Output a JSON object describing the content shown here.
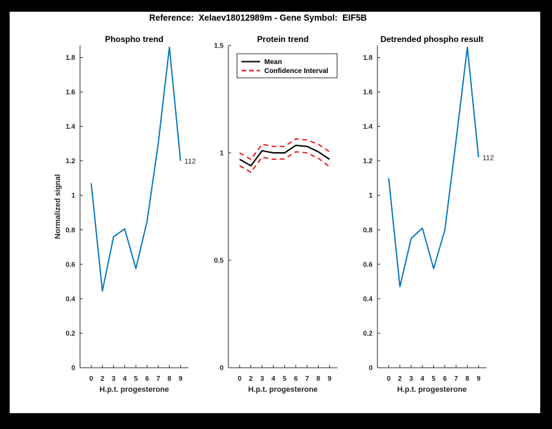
{
  "figure": {
    "title": "Reference:  Xelaev18012989m - Gene Symbol:  EIF5B",
    "background_color": "#000000",
    "canvas_color": "#FFFFFF"
  },
  "colors": {
    "line_blue": "#0072BD",
    "mean_black": "#000000",
    "ci_red": "#EE1111",
    "axis_gray": "#262626"
  },
  "chart_data": [
    {
      "type": "line",
      "title": "Phospho trend",
      "xlabel": "H.p.t. progesterone",
      "ylabel": "Normalized signal",
      "x_tick_labels": [
        "0",
        "2",
        "3",
        "4",
        "5",
        "6",
        "7",
        "8",
        "9"
      ],
      "y_ticks": [
        0,
        0.2,
        0.4,
        0.6,
        0.8,
        1,
        1.2,
        1.4,
        1.6,
        1.8
      ],
      "ylim": [
        0,
        1.87
      ],
      "grid": false,
      "series": [
        {
          "name": "phospho-signal",
          "color": "#0072BD",
          "style": "solid",
          "width": 1.8,
          "values": [
            1.07,
            0.445,
            0.76,
            0.805,
            0.575,
            0.85,
            1.3,
            1.86,
            1.2
          ]
        }
      ],
      "end_label": "112"
    },
    {
      "type": "line",
      "title": "Protein trend",
      "xlabel": "H.p.t. progesterone",
      "ylabel": "",
      "x_tick_labels": [
        "0",
        "2",
        "3",
        "4",
        "5",
        "6",
        "7",
        "8",
        "9"
      ],
      "y_ticks": [
        0,
        0.5,
        1,
        1.5
      ],
      "ylim": [
        0,
        1.5
      ],
      "grid": false,
      "legend": {
        "position": "top-left",
        "entries": [
          {
            "label": "Mean",
            "color": "#000000",
            "style": "solid"
          },
          {
            "label": "Confidence Interval",
            "color": "#EE1111",
            "style": "dashed"
          }
        ]
      },
      "series": [
        {
          "name": "mean",
          "color": "#000000",
          "style": "solid",
          "width": 2,
          "values": [
            0.97,
            0.94,
            1.01,
            1.0,
            1.0,
            1.035,
            1.03,
            1.005,
            0.97
          ]
        },
        {
          "name": "ci-upper",
          "color": "#EE1111",
          "style": "dashed",
          "width": 1.8,
          "values": [
            1.0,
            0.97,
            1.04,
            1.03,
            1.03,
            1.065,
            1.06,
            1.04,
            1.005
          ]
        },
        {
          "name": "ci-lower",
          "color": "#EE1111",
          "style": "dashed",
          "width": 1.8,
          "values": [
            0.94,
            0.91,
            0.98,
            0.97,
            0.972,
            1.005,
            1.0,
            0.975,
            0.935
          ]
        }
      ]
    },
    {
      "type": "line",
      "title": "Detrended phospho result",
      "xlabel": "H.p.t. progesterone",
      "ylabel": "",
      "x_tick_labels": [
        "0",
        "2",
        "3",
        "4",
        "5",
        "6",
        "7",
        "8",
        "9"
      ],
      "y_ticks": [
        0,
        0.2,
        0.4,
        0.6,
        0.8,
        1,
        1.2,
        1.4,
        1.6,
        1.8
      ],
      "ylim": [
        0,
        1.87
      ],
      "grid": false,
      "series": [
        {
          "name": "detrended-signal",
          "color": "#0072BD",
          "style": "solid",
          "width": 1.8,
          "values": [
            1.1,
            0.47,
            0.75,
            0.81,
            0.575,
            0.8,
            1.32,
            1.86,
            1.22
          ]
        }
      ],
      "end_label": "112"
    }
  ]
}
